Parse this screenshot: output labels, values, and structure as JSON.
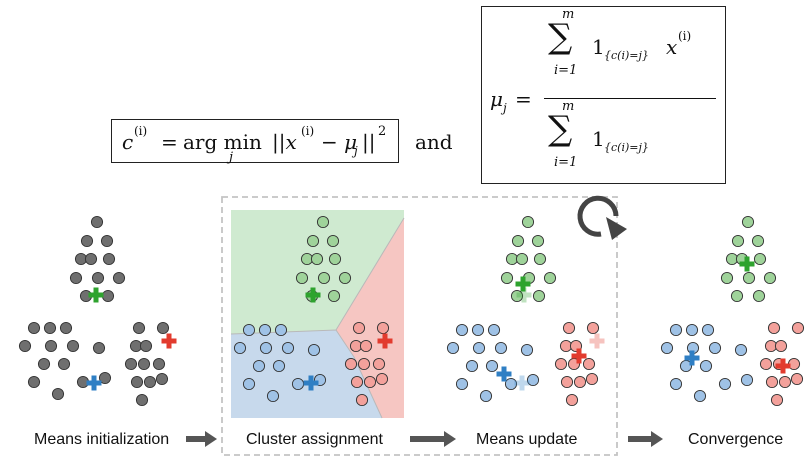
{
  "formulas": {
    "assignment": {
      "lhs": "c",
      "lhs_sup": "(i)",
      "eq": "=",
      "argmin": "arg min",
      "argmin_sub": "j",
      "norm_open": "||x",
      "x_sup": "(i)",
      "minus": " − μ",
      "mu_sub": "j",
      "norm_close": "||",
      "power": "2"
    },
    "connector": "and",
    "update": {
      "lhs": "μ",
      "lhs_sub": "j",
      "eq": "=",
      "sum_symbol": "∑",
      "sum_top": "m",
      "sum_bottom": "i=1",
      "indicator": "1",
      "indicator_sub": "{c(i)=j}",
      "x": "x",
      "x_sup": "(i)"
    }
  },
  "stages": [
    {
      "label": "Means initialization"
    },
    {
      "label": "Cluster assignment"
    },
    {
      "label": "Means update"
    },
    {
      "label": "Convergence"
    }
  ],
  "colors": {
    "gray_point": "#6f6f6f",
    "green_point": "#9fd39a",
    "blue_point": "#9fc2e6",
    "red_point": "#f3a19b",
    "green_region": "#cfead0",
    "blue_region": "#c7d9ec",
    "red_region": "#f6c6c2",
    "green_centroid": "#2ea32e",
    "blue_centroid": "#2f7fc4",
    "red_centroid": "#e23b2e",
    "arrow": "#555555",
    "dashed_border": "#c4c4c4",
    "loop_arrow": "#444444"
  },
  "icons": {
    "loop": "circular-arrow-icon",
    "flow_arrow": "right-arrow-icon"
  }
}
